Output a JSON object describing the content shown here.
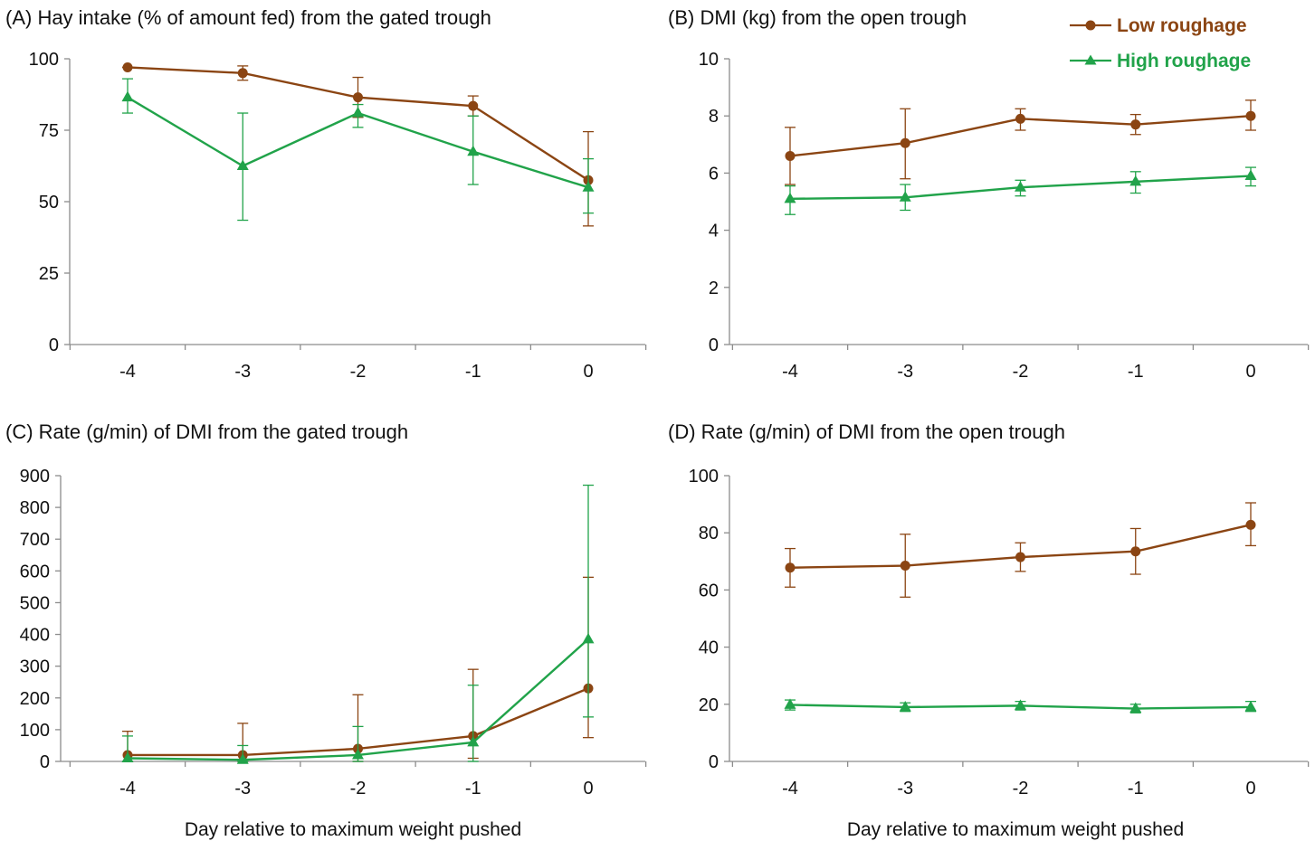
{
  "colors": {
    "low_roughage": "#8b4513",
    "high_roughage": "#21a34a",
    "axis": "#8c8c8c"
  },
  "legend": [
    {
      "label": "Low roughage",
      "color": "#8b4513",
      "marker": "circle"
    },
    {
      "label": "High roughage",
      "color": "#21a34a",
      "marker": "triangle"
    }
  ],
  "chart_data": [
    {
      "id": "A",
      "type": "line",
      "title": "(A) Hay intake (% of amount fed) from the gated trough",
      "xlabel": "",
      "ylabel": "",
      "x": [
        -4,
        -3,
        -2,
        -1,
        0
      ],
      "x_tick_labels": [
        "-4",
        "-3",
        "-2",
        "-1",
        "0"
      ],
      "ylim": [
        0,
        100
      ],
      "yticks": [
        0,
        25,
        50,
        75,
        100
      ],
      "series": [
        {
          "name": "Low roughage",
          "values": [
            97,
            95,
            86.5,
            83.5,
            57.5
          ],
          "err_low": [
            97,
            92.5,
            79.5,
            80,
            41.5
          ],
          "err_high": [
            97,
            97.5,
            93.5,
            87,
            74.5
          ]
        },
        {
          "name": "High roughage",
          "values": [
            86.5,
            62.5,
            81,
            67.5,
            55
          ],
          "err_low": [
            81,
            43.5,
            76,
            56,
            46
          ],
          "err_high": [
            93,
            81,
            84,
            80,
            65
          ]
        }
      ],
      "grid": false
    },
    {
      "id": "B",
      "type": "line",
      "title": "(B) DMI (kg) from the open trough",
      "xlabel": "",
      "ylabel": "",
      "x": [
        -4,
        -3,
        -2,
        -1,
        0
      ],
      "x_tick_labels": [
        "-4",
        "-3",
        "-2",
        "-1",
        "0"
      ],
      "ylim": [
        0,
        10
      ],
      "yticks": [
        0,
        2,
        4,
        6,
        8,
        10
      ],
      "series": [
        {
          "name": "Low roughage",
          "values": [
            6.6,
            7.05,
            7.9,
            7.7,
            8.0
          ],
          "err_low": [
            5.6,
            5.8,
            7.5,
            7.35,
            7.5
          ],
          "err_high": [
            7.6,
            8.25,
            8.25,
            8.05,
            8.55
          ]
        },
        {
          "name": "High roughage",
          "values": [
            5.1,
            5.15,
            5.5,
            5.7,
            5.9
          ],
          "err_low": [
            4.55,
            4.7,
            5.2,
            5.3,
            5.55
          ],
          "err_high": [
            5.55,
            5.6,
            5.75,
            6.05,
            6.2
          ]
        }
      ],
      "grid": false
    },
    {
      "id": "C",
      "type": "line",
      "title": "(C) Rate (g/min) of DMI from the gated trough",
      "xlabel": "Day relative to maximum weight pushed",
      "ylabel": "",
      "x": [
        -4,
        -3,
        -2,
        -1,
        0
      ],
      "x_tick_labels": [
        "-4",
        "-3",
        "-2",
        "-1",
        "0"
      ],
      "ylim": [
        0,
        900
      ],
      "yticks": [
        0,
        100,
        200,
        300,
        400,
        500,
        600,
        700,
        800,
        900
      ],
      "series": [
        {
          "name": "Low roughage",
          "values": [
            20,
            20,
            40,
            80,
            230
          ],
          "err_low": [
            0,
            0,
            0,
            10,
            75
          ],
          "err_high": [
            95,
            120,
            210,
            290,
            580
          ]
        },
        {
          "name": "High roughage",
          "values": [
            10,
            5,
            20,
            60,
            385
          ],
          "err_low": [
            0,
            0,
            0,
            0,
            140
          ],
          "err_high": [
            80,
            50,
            110,
            240,
            870
          ]
        }
      ],
      "grid": false
    },
    {
      "id": "D",
      "type": "line",
      "title": "(D) Rate (g/min) of DMI from the open trough",
      "xlabel": "Day relative to maximum weight pushed",
      "ylabel": "",
      "x": [
        -4,
        -3,
        -2,
        -1,
        0
      ],
      "x_tick_labels": [
        "-4",
        "-3",
        "-2",
        "-1",
        "0"
      ],
      "ylim": [
        0,
        100
      ],
      "yticks": [
        0,
        20,
        40,
        60,
        80,
        100
      ],
      "series": [
        {
          "name": "Low roughage",
          "values": [
            67.8,
            68.5,
            71.5,
            73.5,
            82.8
          ],
          "err_low": [
            61,
            57.5,
            66.5,
            65.5,
            75.5
          ],
          "err_high": [
            74.5,
            79.5,
            76.5,
            81.5,
            90.5
          ]
        },
        {
          "name": "High roughage",
          "values": [
            19.8,
            19,
            19.5,
            18.5,
            19
          ],
          "err_low": [
            18,
            17.5,
            18,
            17,
            17.5
          ],
          "err_high": [
            21.5,
            20.5,
            21,
            20,
            21
          ]
        }
      ],
      "grid": false
    }
  ]
}
